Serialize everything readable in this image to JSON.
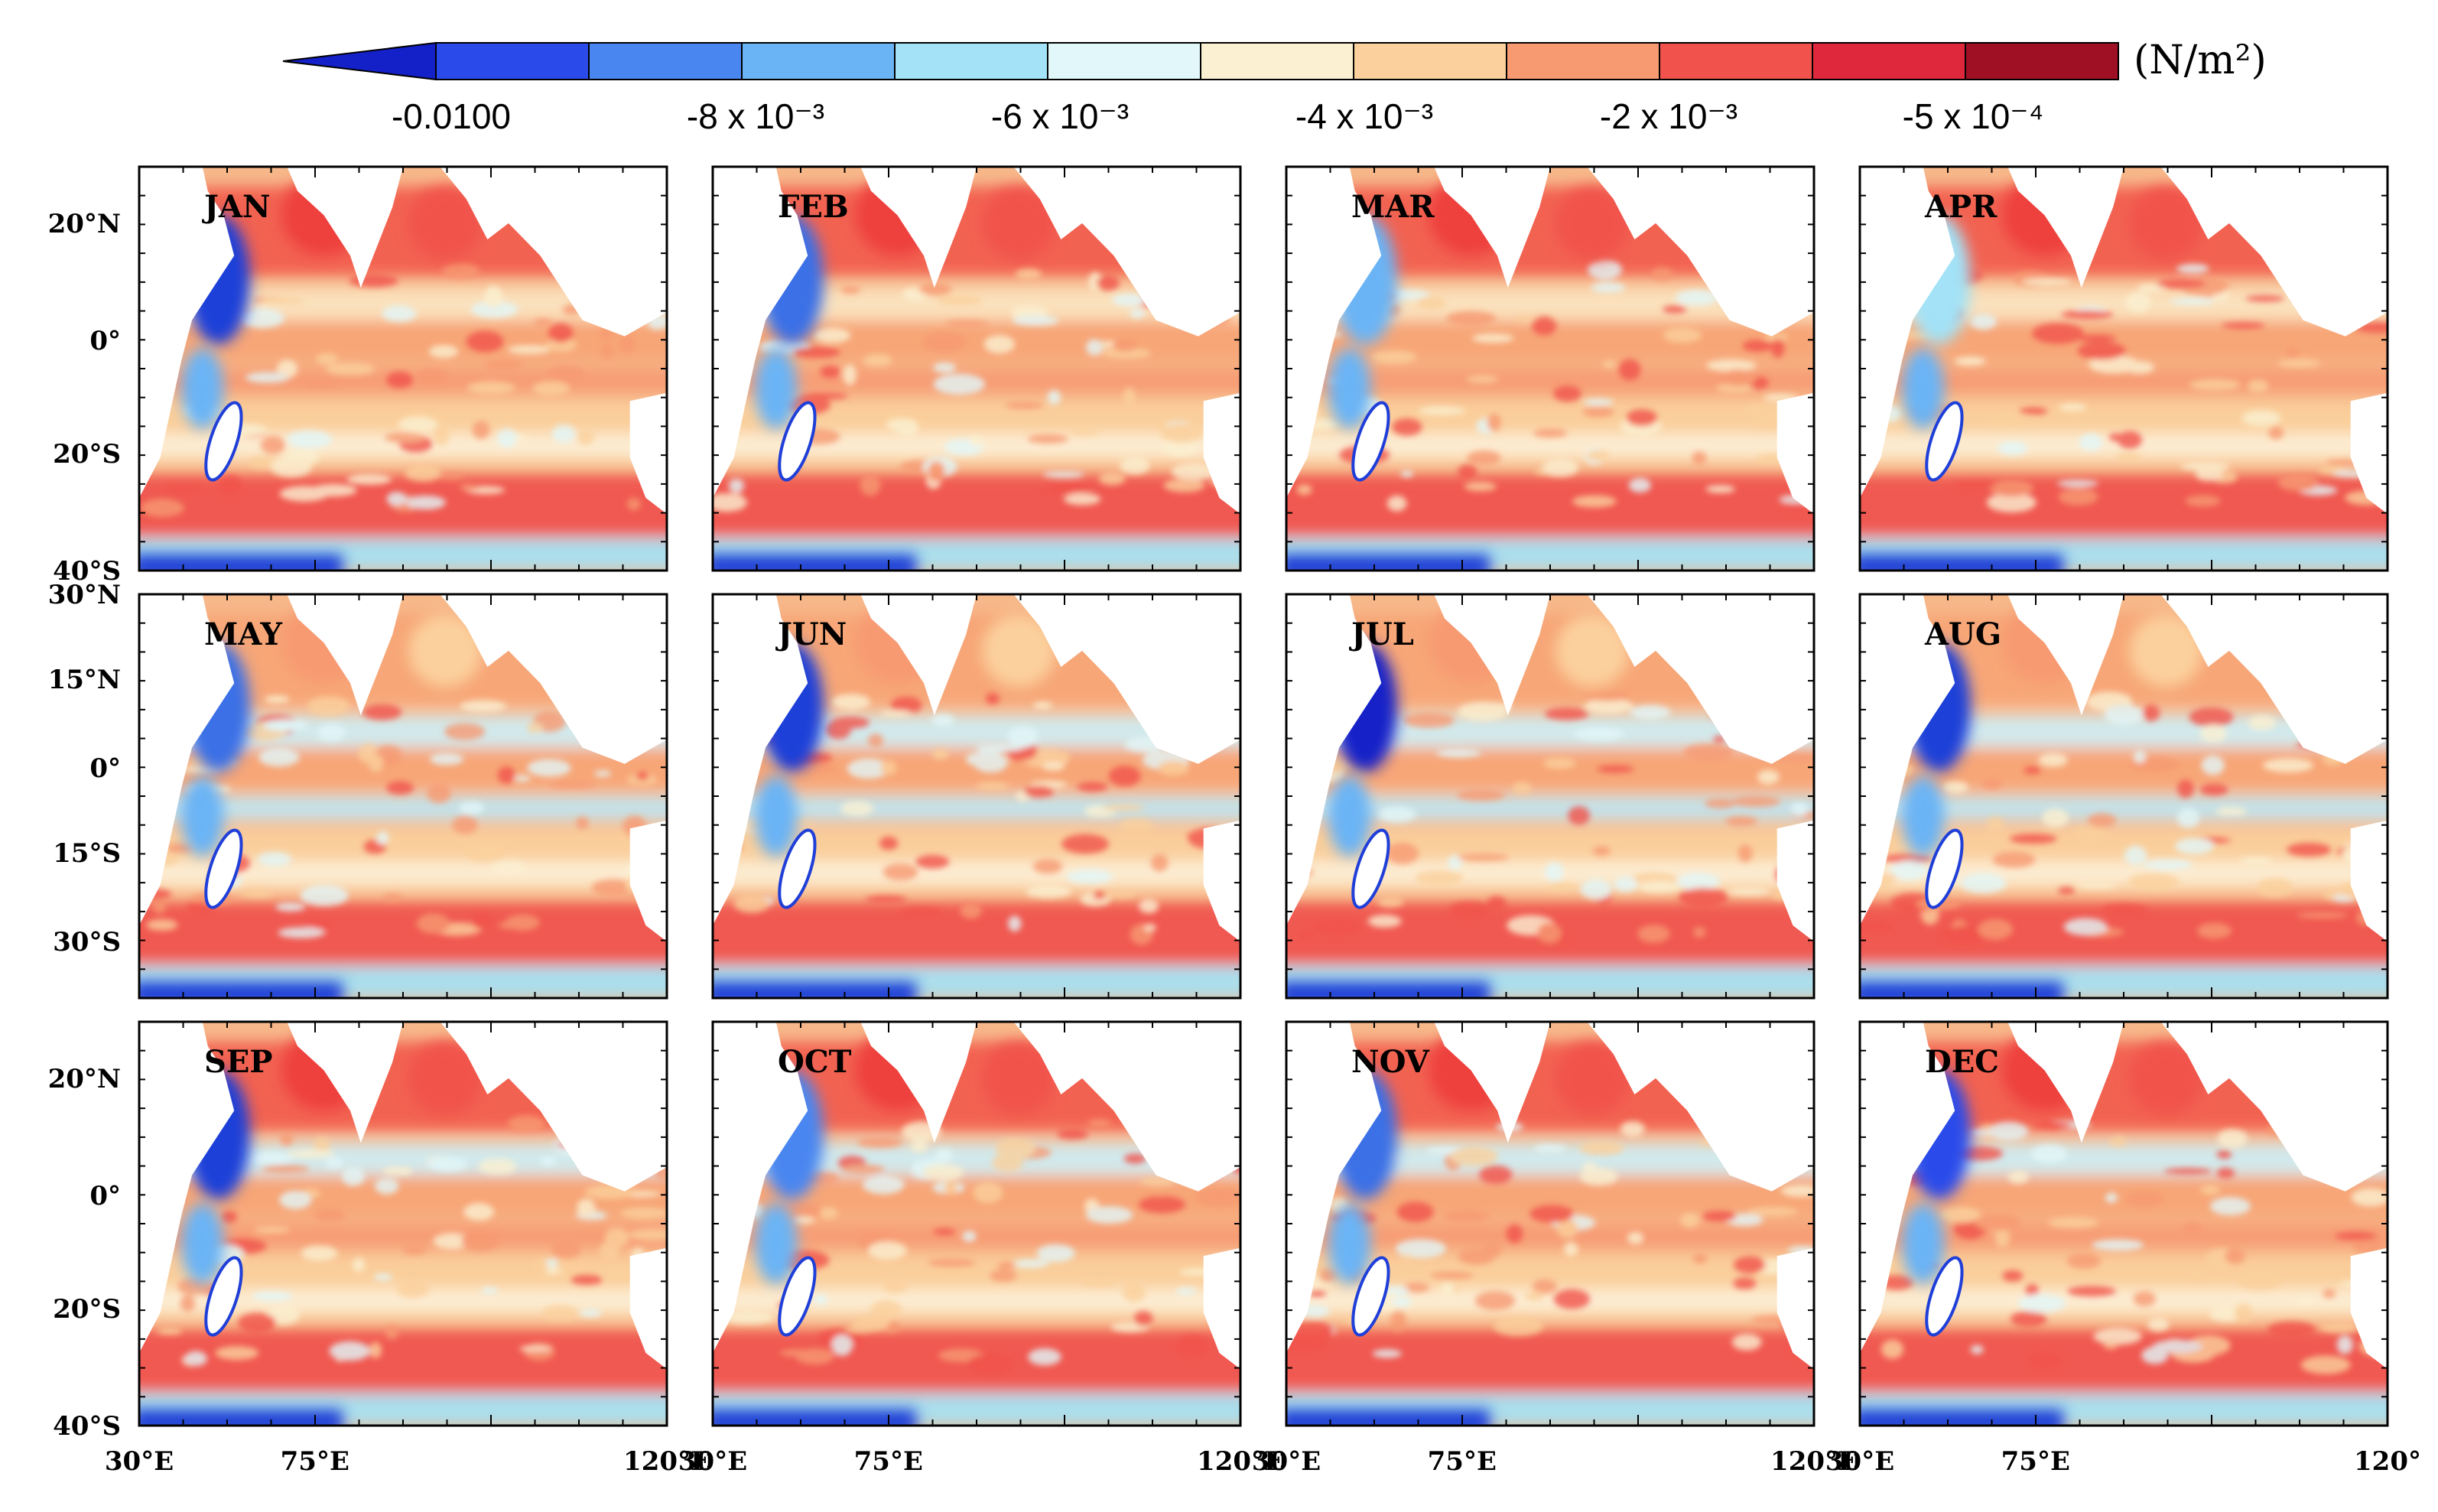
{
  "colorbar": {
    "unit": "(N/m²)",
    "extend_color": "#1420c8",
    "colors": [
      "#2a4bea",
      "#4a86f0",
      "#6ab4f5",
      "#a3e2f7",
      "#e2f7f9",
      "#fbf1d2",
      "#fbd09c",
      "#f79a72",
      "#f1524c",
      "#e0283c",
      "#a01024"
    ],
    "labels": [
      "-0.0100",
      "-8 x 10⁻³",
      "-6 x 10⁻³",
      "-4 x 10⁻³",
      "-2 x 10⁻³",
      "-5 x 10⁻⁴"
    ]
  },
  "panels": [
    {
      "month": "JAN",
      "coast": "#1f3fd8"
    },
    {
      "month": "FEB",
      "coast": "#3a6fe6"
    },
    {
      "month": "MAR",
      "coast": "#6ab4f5"
    },
    {
      "month": "APR",
      "coast": "#a3e2f7"
    },
    {
      "month": "MAY",
      "coast": "#3a6fe6"
    },
    {
      "month": "JUN",
      "coast": "#1f3fd8"
    },
    {
      "month": "JUL",
      "coast": "#1420c8"
    },
    {
      "month": "AUG",
      "coast": "#1f3fd8"
    },
    {
      "month": "SEP",
      "coast": "#1f3fd8"
    },
    {
      "month": "OCT",
      "coast": "#4a86f0"
    },
    {
      "month": "NOV",
      "coast": "#3a6fe6"
    },
    {
      "month": "DEC",
      "coast": "#2a4bea"
    }
  ],
  "row_y_labels": [
    [
      "20°N",
      "0°",
      "20°S",
      "40°S"
    ],
    [
      "30°N",
      "15°N",
      "0°",
      "15°S",
      "30°S"
    ],
    [
      "20°N",
      "0°",
      "20°S",
      "40°S"
    ]
  ],
  "x_labels": [
    "30°E",
    "75°E",
    "120°E",
    "30°E",
    "75°E",
    "120°E",
    "30°E",
    "75°E",
    "120°E",
    "30°E",
    "75°E",
    "120°"
  ]
}
